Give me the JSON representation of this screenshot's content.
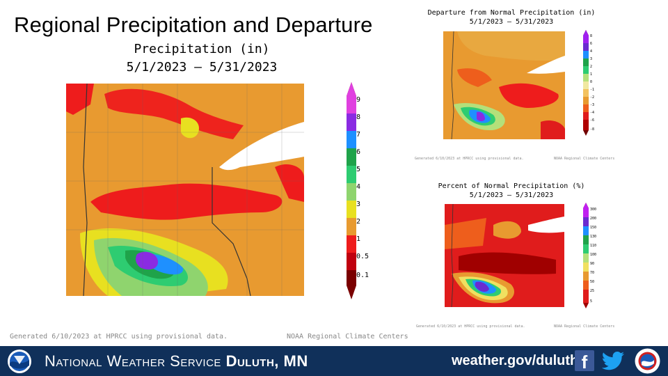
{
  "title": "Regional Precipitation and Departure",
  "main": {
    "subtitle": "Precipitation (in)",
    "dates": "5/1/2023 – 5/31/2023",
    "legend": [
      "9",
      "8",
      "7",
      "6",
      "5",
      "4",
      "3",
      "2",
      "1",
      "0.5",
      "0.1"
    ],
    "legend_colors": [
      "#e040e0",
      "#8a2be2",
      "#1e90ff",
      "#1fa34a",
      "#2ecc71",
      "#8fd46e",
      "#e8e020",
      "#e89a30",
      "#ee1c1c",
      "#c0000f",
      "#7a0000"
    ],
    "footer_left": "Generated 6/10/2023 at HPRCC using provisional data.",
    "footer_right": "NOAA Regional Climate Centers"
  },
  "departure": {
    "title": "Departure from Normal Precipitation (in)",
    "dates": "5/1/2023 – 5/31/2023",
    "legend": [
      "8",
      "6",
      "4",
      "3",
      "2",
      "1",
      "0",
      "-1",
      "-2",
      "-3",
      "-4",
      "-6",
      "-8"
    ],
    "legend_colors": [
      "#a020f0",
      "#6a2bd0",
      "#1e90ff",
      "#1fa34a",
      "#2ecc71",
      "#b4e07a",
      "#f0e8a0",
      "#f3c260",
      "#e89a30",
      "#ee5e1c",
      "#e01c1c",
      "#b00000",
      "#700000"
    ],
    "footer_left": "Generated 6/10/2023 at HPRCC using provisional data.",
    "footer_right": "NOAA Regional Climate Centers"
  },
  "percent": {
    "title": "Percent of Normal Precipitation (%)",
    "dates": "5/1/2023 – 5/31/2023",
    "legend": [
      "300",
      "200",
      "150",
      "130",
      "110",
      "100",
      "90",
      "70",
      "50",
      "25",
      "5"
    ],
    "legend_colors": [
      "#c020f0",
      "#6a2bd0",
      "#1e90ff",
      "#1fa34a",
      "#2ecc71",
      "#b4e07a",
      "#f0e060",
      "#e89a30",
      "#ee5e1c",
      "#e01c1c",
      "#a00000"
    ],
    "footer_left": "Generated 6/10/2023 at HPRCC using provisional data.",
    "footer_right": "NOAA Regional Climate Centers"
  },
  "bottom_bar": {
    "nws_prefix": "National Weather Service",
    "office": "Duluth, MN",
    "url": "weather.gov/duluth",
    "facebook_icon": "facebook-icon",
    "twitter_icon": "twitter-icon",
    "colors": {
      "bar": "#10305a",
      "facebook": "#3b5998",
      "twitter": "#1da1f2"
    }
  }
}
